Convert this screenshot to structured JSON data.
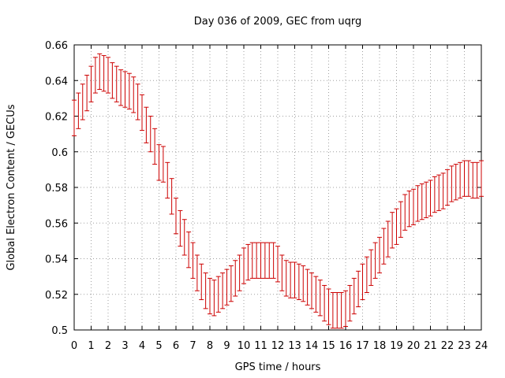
{
  "chart_data": {
    "type": "line",
    "title": "Day 036 of 2009, GEC from uqrg",
    "xlabel": "GPS time / hours",
    "ylabel": "Global Electron Content / GECUs",
    "xlim": [
      0,
      24
    ],
    "ylim": [
      0.5,
      0.66
    ],
    "x_ticks": [
      "0",
      "1",
      "2",
      "3",
      "4",
      "5",
      "6",
      "7",
      "8",
      "9",
      "10",
      "11",
      "12",
      "13",
      "14",
      "15",
      "16",
      "17",
      "18",
      "19",
      "20",
      "21",
      "22",
      "23",
      "24"
    ],
    "y_ticks": [
      "0.5",
      "0.52",
      "0.54",
      "0.56",
      "0.58",
      "0.6",
      "0.62",
      "0.64",
      "0.66"
    ],
    "grid": true,
    "line_color": "#cc0000",
    "error_bar_half_width": 0.01,
    "series": [
      {
        "values": [
          [
            0.0,
            0.619
          ],
          [
            0.25,
            0.623
          ],
          [
            0.5,
            0.628
          ],
          [
            0.75,
            0.633
          ],
          [
            1.0,
            0.638
          ],
          [
            1.25,
            0.643
          ],
          [
            1.5,
            0.645
          ],
          [
            1.75,
            0.644
          ],
          [
            2.0,
            0.643
          ],
          [
            2.25,
            0.64
          ],
          [
            2.5,
            0.638
          ],
          [
            2.75,
            0.636
          ],
          [
            3.0,
            0.635
          ],
          [
            3.25,
            0.634
          ],
          [
            3.5,
            0.632
          ],
          [
            3.75,
            0.628
          ],
          [
            4.0,
            0.622
          ],
          [
            4.25,
            0.615
          ],
          [
            4.5,
            0.61
          ],
          [
            4.75,
            0.603
          ],
          [
            5.0,
            0.594
          ],
          [
            5.25,
            0.593
          ],
          [
            5.5,
            0.584
          ],
          [
            5.75,
            0.575
          ],
          [
            6.0,
            0.564
          ],
          [
            6.25,
            0.557
          ],
          [
            6.5,
            0.552
          ],
          [
            6.75,
            0.545
          ],
          [
            7.0,
            0.539
          ],
          [
            7.25,
            0.532
          ],
          [
            7.5,
            0.527
          ],
          [
            7.75,
            0.522
          ],
          [
            8.0,
            0.519
          ],
          [
            8.25,
            0.518
          ],
          [
            8.5,
            0.52
          ],
          [
            8.75,
            0.522
          ],
          [
            9.0,
            0.524
          ],
          [
            9.25,
            0.526
          ],
          [
            9.5,
            0.529
          ],
          [
            9.75,
            0.532
          ],
          [
            10.0,
            0.536
          ],
          [
            10.25,
            0.538
          ],
          [
            10.5,
            0.539
          ],
          [
            10.75,
            0.539
          ],
          [
            11.0,
            0.539
          ],
          [
            11.25,
            0.539
          ],
          [
            11.5,
            0.539
          ],
          [
            11.75,
            0.539
          ],
          [
            12.0,
            0.537
          ],
          [
            12.25,
            0.532
          ],
          [
            12.5,
            0.529
          ],
          [
            12.75,
            0.528
          ],
          [
            13.0,
            0.528
          ],
          [
            13.25,
            0.527
          ],
          [
            13.5,
            0.526
          ],
          [
            13.75,
            0.524
          ],
          [
            14.0,
            0.522
          ],
          [
            14.25,
            0.52
          ],
          [
            14.5,
            0.518
          ],
          [
            14.75,
            0.515
          ],
          [
            15.0,
            0.513
          ],
          [
            15.25,
            0.511
          ],
          [
            15.5,
            0.511
          ],
          [
            15.75,
            0.511
          ],
          [
            16.0,
            0.512
          ],
          [
            16.25,
            0.515
          ],
          [
            16.5,
            0.519
          ],
          [
            16.75,
            0.523
          ],
          [
            17.0,
            0.527
          ],
          [
            17.25,
            0.531
          ],
          [
            17.5,
            0.535
          ],
          [
            17.75,
            0.539
          ],
          [
            18.0,
            0.542
          ],
          [
            18.25,
            0.547
          ],
          [
            18.5,
            0.551
          ],
          [
            18.75,
            0.556
          ],
          [
            19.0,
            0.558
          ],
          [
            19.25,
            0.562
          ],
          [
            19.5,
            0.566
          ],
          [
            19.75,
            0.568
          ],
          [
            20.0,
            0.569
          ],
          [
            20.25,
            0.571
          ],
          [
            20.5,
            0.572
          ],
          [
            20.75,
            0.573
          ],
          [
            21.0,
            0.574
          ],
          [
            21.25,
            0.576
          ],
          [
            21.5,
            0.577
          ],
          [
            21.75,
            0.578
          ],
          [
            22.0,
            0.58
          ],
          [
            22.25,
            0.582
          ],
          [
            22.5,
            0.583
          ],
          [
            22.75,
            0.584
          ],
          [
            23.0,
            0.585
          ],
          [
            23.25,
            0.585
          ],
          [
            23.5,
            0.584
          ],
          [
            23.75,
            0.584
          ],
          [
            24.0,
            0.585
          ]
        ]
      }
    ]
  }
}
